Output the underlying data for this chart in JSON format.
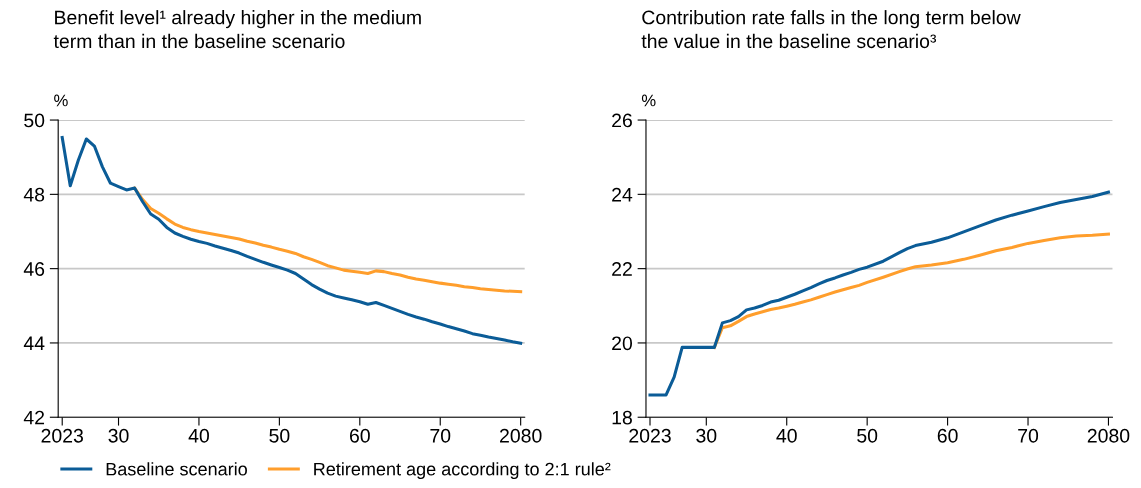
{
  "chart_data": [
    {
      "type": "line",
      "title": "Benefit level¹ already higher in the medium term than in the baseline scenario",
      "ylabel": "%",
      "xlim": [
        2022.5,
        2080.5
      ],
      "xticks": [
        2023,
        {
          "value": 2030,
          "label": "30"
        },
        {
          "value": 2040,
          "label": "40"
        },
        {
          "value": 2050,
          "label": "50"
        },
        {
          "value": 2060,
          "label": "60"
        },
        {
          "value": 2070,
          "label": "70"
        },
        2080
      ],
      "ylim": [
        42,
        50
      ],
      "yticks": [
        42,
        44,
        46,
        48,
        50
      ],
      "grid": "y",
      "legend": "bottom",
      "line_style": "solid",
      "marker": "none",
      "series": [
        {
          "name": "Baseline scenario",
          "color": "#0b5c97",
          "x": [
            2023,
            2024,
            2025,
            2026,
            2027,
            2028,
            2029,
            2030,
            2031,
            2032,
            2033,
            2034,
            2035,
            2036,
            2037,
            2038,
            2039,
            2040,
            2041,
            2042,
            2043,
            2044,
            2045,
            2046,
            2047,
            2048,
            2049,
            2050,
            2051,
            2052,
            2053,
            2054,
            2055,
            2056,
            2057,
            2058,
            2059,
            2060,
            2061,
            2062,
            2063,
            2064,
            2065,
            2066,
            2067,
            2068,
            2069,
            2070,
            2071,
            2072,
            2073,
            2074,
            2075,
            2076,
            2077,
            2078,
            2079,
            2080
          ],
          "values": [
            49.53,
            48.23,
            48.92,
            49.49,
            49.3,
            48.74,
            48.3,
            48.21,
            48.12,
            48.17,
            47.8,
            47.47,
            47.33,
            47.11,
            46.96,
            46.87,
            46.79,
            46.73,
            46.68,
            46.61,
            46.55,
            46.49,
            46.42,
            46.33,
            46.25,
            46.17,
            46.1,
            46.03,
            45.96,
            45.87,
            45.72,
            45.57,
            45.45,
            45.34,
            45.26,
            45.21,
            45.16,
            45.11,
            45.04,
            45.09,
            45.01,
            44.93,
            44.85,
            44.77,
            44.7,
            44.64,
            44.57,
            44.51,
            44.44,
            44.38,
            44.32,
            44.25,
            44.21,
            44.16,
            44.12,
            44.08,
            44.03,
            43.99
          ]
        },
        {
          "name": "Retirement age according to 2:1 rule²",
          "color": "#ff9e2c",
          "x": [
            2032,
            2033,
            2034,
            2035,
            2036,
            2037,
            2038,
            2039,
            2040,
            2041,
            2042,
            2043,
            2044,
            2045,
            2046,
            2047,
            2048,
            2049,
            2050,
            2051,
            2052,
            2053,
            2054,
            2055,
            2056,
            2057,
            2058,
            2059,
            2060,
            2061,
            2062,
            2063,
            2064,
            2065,
            2066,
            2067,
            2068,
            2069,
            2070,
            2071,
            2072,
            2073,
            2074,
            2075,
            2076,
            2077,
            2078,
            2079,
            2080
          ],
          "values": [
            48.17,
            47.86,
            47.62,
            47.49,
            47.34,
            47.2,
            47.11,
            47.05,
            47.0,
            46.96,
            46.92,
            46.88,
            46.84,
            46.8,
            46.74,
            46.69,
            46.63,
            46.58,
            46.52,
            46.47,
            46.41,
            46.32,
            46.25,
            46.17,
            46.08,
            46.02,
            45.96,
            45.93,
            45.9,
            45.87,
            45.94,
            45.92,
            45.87,
            45.83,
            45.77,
            45.72,
            45.69,
            45.65,
            45.61,
            45.58,
            45.55,
            45.51,
            45.49,
            45.46,
            45.44,
            45.42,
            45.4,
            45.39,
            45.38
          ]
        }
      ]
    },
    {
      "type": "line",
      "title": "Contribution rate falls in the long term below the value in the baseline scenario³",
      "ylabel": "%",
      "xlim": [
        2022.5,
        2080.5
      ],
      "xticks": [
        2023,
        {
          "value": 2030,
          "label": "30"
        },
        {
          "value": 2040,
          "label": "40"
        },
        {
          "value": 2050,
          "label": "50"
        },
        {
          "value": 2060,
          "label": "60"
        },
        {
          "value": 2070,
          "label": "70"
        },
        2080
      ],
      "ylim": [
        18,
        26
      ],
      "yticks": [
        18,
        20,
        22,
        24,
        26
      ],
      "grid": "y",
      "line_style": "solid",
      "marker": "none",
      "series": [
        {
          "name": "Baseline scenario",
          "color": "#0b5c97",
          "x": [
            2023,
            2024,
            2025,
            2026,
            2027,
            2028,
            2029,
            2030,
            2031,
            2032,
            2033,
            2034,
            2035,
            2036,
            2037,
            2038,
            2039,
            2040,
            2041,
            2042,
            2043,
            2044,
            2045,
            2046,
            2047,
            2048,
            2049,
            2050,
            2052,
            2054,
            2055,
            2056,
            2058,
            2060,
            2062,
            2064,
            2066,
            2068,
            2070,
            2072,
            2074,
            2076,
            2078,
            2080
          ],
          "values": [
            18.6,
            18.6,
            18.6,
            19.08,
            19.88,
            19.88,
            19.88,
            19.88,
            19.88,
            20.54,
            20.6,
            20.71,
            20.89,
            20.94,
            21.01,
            21.1,
            21.15,
            21.23,
            21.31,
            21.4,
            21.49,
            21.59,
            21.68,
            21.75,
            21.83,
            21.9,
            21.98,
            22.04,
            22.2,
            22.43,
            22.54,
            22.62,
            22.71,
            22.83,
            22.99,
            23.15,
            23.31,
            23.44,
            23.55,
            23.67,
            23.78,
            23.86,
            23.94,
            24.06
          ]
        },
        {
          "name": "Retirement age according to 2:1 rule²",
          "color": "#ff9e2c",
          "x": [
            2031,
            2032,
            2033,
            2034,
            2035,
            2036,
            2037,
            2038,
            2039,
            2040,
            2041,
            2042,
            2043,
            2044,
            2045,
            2046,
            2047,
            2048,
            2049,
            2050,
            2052,
            2054,
            2055,
            2056,
            2058,
            2060,
            2062,
            2064,
            2066,
            2068,
            2070,
            2072,
            2074,
            2076,
            2078,
            2080
          ],
          "values": [
            19.88,
            20.41,
            20.46,
            20.58,
            20.71,
            20.78,
            20.84,
            20.9,
            20.94,
            20.99,
            21.04,
            21.1,
            21.16,
            21.23,
            21.3,
            21.37,
            21.43,
            21.49,
            21.55,
            21.63,
            21.77,
            21.92,
            21.99,
            22.05,
            22.1,
            22.16,
            22.25,
            22.36,
            22.48,
            22.57,
            22.68,
            22.76,
            22.83,
            22.88,
            22.9,
            22.93
          ]
        }
      ]
    }
  ]
}
